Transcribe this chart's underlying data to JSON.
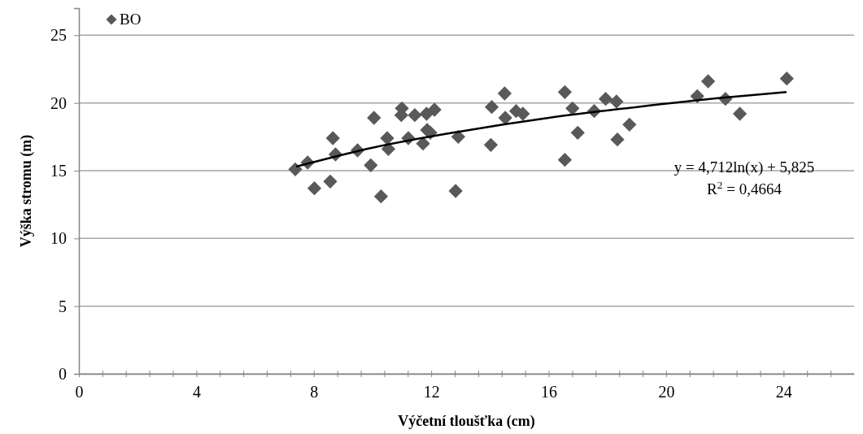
{
  "chart_data": {
    "type": "scatter",
    "xlabel": "Výčetní tloušťka (cm)",
    "ylabel": "Výška stromu (m)",
    "xlim": [
      0,
      26.4
    ],
    "ylim": [
      0,
      27
    ],
    "xticks": [
      0,
      {
        "value": 0.8,
        "label": null
      },
      {
        "value": 1.6,
        "label": null
      },
      {
        "value": 2.4,
        "label": null
      },
      {
        "value": 3.2,
        "label": null
      },
      4,
      {
        "value": 4.8,
        "label": null
      },
      {
        "value": 5.6,
        "label": null
      },
      {
        "value": 6.4,
        "label": null
      },
      {
        "value": 7.2,
        "label": null
      },
      8,
      {
        "value": 8.8,
        "label": null
      },
      {
        "value": 9.6,
        "label": null
      },
      {
        "value": 10.4,
        "label": null
      },
      {
        "value": 11.2,
        "label": null
      },
      12,
      {
        "value": 12.8,
        "label": null
      },
      {
        "value": 13.6,
        "label": null
      },
      {
        "value": 14.4,
        "label": null
      },
      {
        "value": 15.2,
        "label": null
      },
      16,
      {
        "value": 16.8,
        "label": null
      },
      {
        "value": 17.6,
        "label": null
      },
      {
        "value": 18.4,
        "label": null
      },
      {
        "value": 19.2,
        "label": null
      },
      20,
      {
        "value": 20.8,
        "label": null
      },
      {
        "value": 21.6,
        "label": null
      },
      {
        "value": 22.4,
        "label": null
      },
      {
        "value": 23.2,
        "label": null
      },
      24,
      {
        "value": 24.8,
        "label": null
      },
      {
        "value": 25.6,
        "label": null
      }
    ],
    "yticks": [
      0,
      5,
      10,
      15,
      20,
      25
    ],
    "grid": "y",
    "legend": "top left",
    "annotations": [
      "y = 4,712ln(x) + 5,825",
      "R$^{2}$ = 0,4664"
    ],
    "series": [
      {
        "name": "BO",
        "marker": "diamond",
        "color": "#595959",
        "x": [
          7.37,
          7.79,
          8.02,
          8.65,
          8.74,
          8.56,
          9.49,
          10.05,
          9.94,
          10.29,
          10.5,
          10.54,
          11.0,
          10.98,
          11.22,
          11.44,
          11.72,
          11.84,
          11.86,
          11.97,
          12.11,
          12.83,
          12.92,
          14.03,
          14.06,
          14.5,
          14.52,
          14.89,
          15.12,
          16.55,
          16.55,
          16.81,
          16.99,
          17.55,
          17.94,
          18.31,
          18.34,
          18.75,
          21.06,
          21.43,
          22.02,
          22.51,
          24.11
        ],
        "values": [
          15.1,
          15.6,
          13.7,
          17.4,
          16.2,
          14.2,
          16.5,
          18.9,
          15.4,
          13.1,
          17.4,
          16.6,
          19.6,
          19.1,
          17.4,
          19.1,
          17.0,
          19.2,
          18.0,
          17.8,
          19.5,
          13.5,
          17.5,
          16.9,
          19.7,
          20.7,
          18.9,
          19.4,
          19.2,
          20.8,
          15.8,
          19.6,
          17.8,
          19.4,
          20.3,
          20.1,
          17.3,
          18.4,
          20.5,
          21.6,
          20.3,
          19.2,
          21.8
        ]
      },
      {
        "type": "line",
        "color": "#000000",
        "marker": "none",
        "line_style": "solid",
        "x": [
          7.4,
          10,
          13,
          16,
          19,
          22,
          24.1
        ],
        "values": [
          15.3,
          16.7,
          17.9,
          18.9,
          19.7,
          20.4,
          20.8
        ]
      }
    ]
  }
}
